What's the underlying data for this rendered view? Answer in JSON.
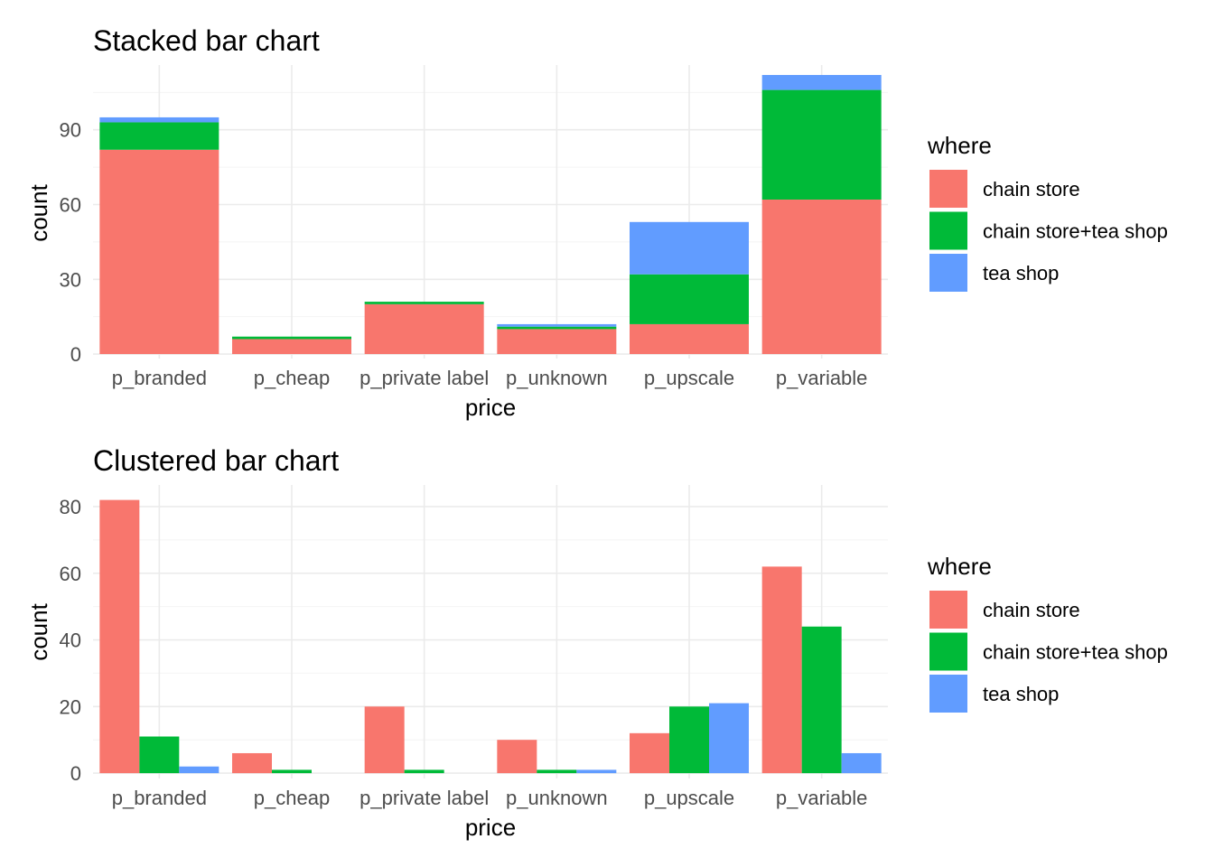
{
  "fill_label": "where",
  "x_label": "price",
  "y_label": "count",
  "categories": [
    "p_branded",
    "p_cheap",
    "p_private label",
    "p_unknown",
    "p_upscale",
    "p_variable"
  ],
  "legend": [
    {
      "name": "chain store",
      "color": "#F8766D"
    },
    {
      "name": "chain store+tea shop",
      "color": "#00BA38"
    },
    {
      "name": "tea shop",
      "color": "#619CFF"
    }
  ],
  "chart_data": [
    {
      "type": "bar",
      "position": "stacked",
      "title": "Stacked bar chart",
      "xlabel": "price",
      "ylabel": "count",
      "categories": [
        "p_branded",
        "p_cheap",
        "p_private label",
        "p_unknown",
        "p_upscale",
        "p_variable"
      ],
      "series": [
        {
          "name": "chain store",
          "color": "#F8766D",
          "values": [
            82,
            6,
            20,
            10,
            12,
            62
          ]
        },
        {
          "name": "chain store+tea shop",
          "color": "#00BA38",
          "values": [
            11,
            1,
            1,
            1,
            20,
            44
          ]
        },
        {
          "name": "tea shop",
          "color": "#619CFF",
          "values": [
            2,
            0,
            0,
            1,
            21,
            6
          ]
        }
      ],
      "y_ticks": [
        0,
        30,
        60,
        90
      ],
      "ylim": [
        -1.8,
        116
      ],
      "grid": true,
      "legend_position": "right"
    },
    {
      "type": "bar",
      "position": "dodged",
      "title": "Clustered bar chart",
      "xlabel": "price",
      "ylabel": "count",
      "categories": [
        "p_branded",
        "p_cheap",
        "p_private label",
        "p_unknown",
        "p_upscale",
        "p_variable"
      ],
      "series": [
        {
          "name": "chain store",
          "color": "#F8766D",
          "values": [
            82,
            6,
            20,
            10,
            12,
            62
          ]
        },
        {
          "name": "chain store+tea shop",
          "color": "#00BA38",
          "values": [
            11,
            1,
            1,
            1,
            20,
            44
          ]
        },
        {
          "name": "tea shop",
          "color": "#619CFF",
          "values": [
            2,
            0,
            0,
            1,
            21,
            6
          ]
        }
      ],
      "y_ticks": [
        0,
        20,
        40,
        60,
        80
      ],
      "ylim": [
        -1.6,
        86.5
      ],
      "grid": true,
      "legend_position": "right"
    }
  ]
}
